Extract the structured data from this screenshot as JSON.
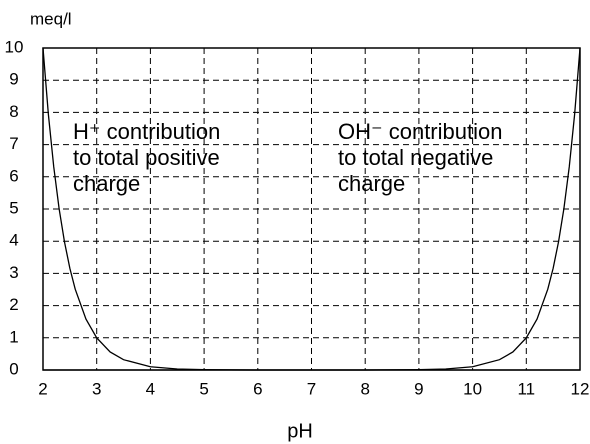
{
  "chart_data": {
    "type": "line",
    "ylabel": "meq/l",
    "xlabel": "pH",
    "x": [
      2,
      2.1,
      2.2,
      2.3,
      2.4,
      2.5,
      2.6,
      2.8,
      3,
      3.25,
      3.5,
      4,
      4.5,
      5,
      6,
      7,
      8,
      9,
      9.5,
      10,
      10.5,
      10.75,
      11,
      11.2,
      11.4,
      11.5,
      11.6,
      11.7,
      11.8,
      11.9,
      12
    ],
    "series": [
      {
        "color": "#000000",
        "values": [
          10,
          7.94,
          6.31,
          5.01,
          3.98,
          3.16,
          2.51,
          1.58,
          1,
          0.56,
          0.32,
          0.1,
          0.03,
          0.01,
          0,
          0,
          0,
          0,
          0,
          0,
          0,
          0,
          0,
          0,
          0,
          0,
          0,
          0,
          0,
          0,
          0
        ]
      },
      {
        "color": "#000000",
        "values": [
          0,
          0,
          0,
          0,
          0,
          0,
          0,
          0,
          0,
          0,
          0,
          0,
          0,
          0,
          0,
          0,
          0,
          0.01,
          0.03,
          0.1,
          0.32,
          0.56,
          1,
          1.58,
          2.51,
          3.16,
          3.98,
          5.01,
          6.31,
          7.94,
          10
        ]
      }
    ],
    "annotations": [
      [
        "H⁺ contribution",
        "to total positive",
        "charge"
      ],
      [
        "OH⁻ contribution",
        "to total negative",
        "charge"
      ]
    ],
    "xlim": [
      2,
      12
    ],
    "xticks": [
      2,
      3,
      4,
      5,
      6,
      7,
      8,
      9,
      10,
      11,
      12
    ],
    "ylim": [
      0,
      10
    ],
    "yticks": [
      0,
      1,
      2,
      3,
      4,
      5,
      6,
      7,
      8,
      9,
      10
    ],
    "grid": true
  }
}
